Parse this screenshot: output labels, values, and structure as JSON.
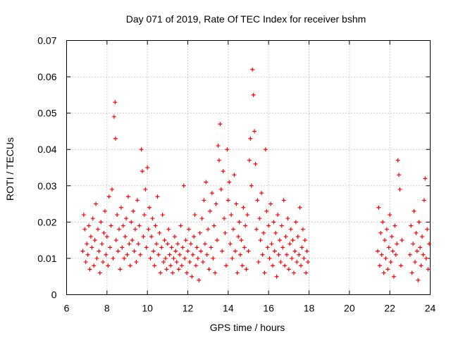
{
  "chart_data": {
    "type": "scatter",
    "title": "Day 071 of 2019, Rate Of TEC Index for receiver bshm",
    "xlabel": "GPS time / hours",
    "ylabel": "ROTI / TECUs",
    "xlim": [
      6,
      24
    ],
    "ylim": [
      0,
      0.07
    ],
    "x_ticks": [
      "6",
      "8",
      "10",
      "12",
      "14",
      "16",
      "18",
      "20",
      "22",
      "24"
    ],
    "y_ticks": [
      "0",
      "0.01",
      "0.02",
      "0.03",
      "0.04",
      "0.05",
      "0.06",
      "0.07"
    ],
    "grid": true,
    "marker": "+",
    "color": "#ff0000",
    "series": [
      {
        "name": "ROTI",
        "points": [
          [
            6.8,
            0.012
          ],
          [
            6.85,
            0.022
          ],
          [
            6.9,
            0.018
          ],
          [
            6.95,
            0.009
          ],
          [
            7.0,
            0.014
          ],
          [
            7.05,
            0.011
          ],
          [
            7.1,
            0.019
          ],
          [
            7.15,
            0.007
          ],
          [
            7.2,
            0.016
          ],
          [
            7.25,
            0.013
          ],
          [
            7.3,
            0.021
          ],
          [
            7.35,
            0.008
          ],
          [
            7.4,
            0.015
          ],
          [
            7.45,
            0.025
          ],
          [
            7.5,
            0.01
          ],
          [
            7.55,
            0.018
          ],
          [
            7.6,
            0.012
          ],
          [
            7.65,
            0.006
          ],
          [
            7.7,
            0.02
          ],
          [
            7.75,
            0.014
          ],
          [
            7.8,
            0.009
          ],
          [
            7.85,
            0.017
          ],
          [
            7.9,
            0.023
          ],
          [
            7.95,
            0.011
          ],
          [
            8.0,
            0.016
          ],
          [
            8.05,
            0.008
          ],
          [
            8.1,
            0.027
          ],
          [
            8.15,
            0.013
          ],
          [
            8.2,
            0.019
          ],
          [
            8.25,
            0.029
          ],
          [
            8.3,
            0.01
          ],
          [
            8.35,
            0.049
          ],
          [
            8.4,
            0.053
          ],
          [
            8.42,
            0.043
          ],
          [
            8.45,
            0.015
          ],
          [
            8.5,
            0.022
          ],
          [
            8.55,
            0.012
          ],
          [
            8.6,
            0.018
          ],
          [
            8.65,
            0.007
          ],
          [
            8.7,
            0.024
          ],
          [
            8.75,
            0.013
          ],
          [
            8.8,
            0.019
          ],
          [
            8.85,
            0.01
          ],
          [
            8.9,
            0.016
          ],
          [
            8.95,
            0.021
          ],
          [
            9.0,
            0.011
          ],
          [
            9.05,
            0.027
          ],
          [
            9.1,
            0.014
          ],
          [
            9.15,
            0.008
          ],
          [
            9.2,
            0.02
          ],
          [
            9.25,
            0.015
          ],
          [
            9.3,
            0.023
          ],
          [
            9.35,
            0.012
          ],
          [
            9.4,
            0.018
          ],
          [
            9.45,
            0.009
          ],
          [
            9.5,
            0.026
          ],
          [
            9.55,
            0.014
          ],
          [
            9.6,
            0.019
          ],
          [
            9.65,
            0.011
          ],
          [
            9.7,
            0.04
          ],
          [
            9.75,
            0.034
          ],
          [
            9.8,
            0.016
          ],
          [
            9.85,
            0.022
          ],
          [
            9.9,
            0.029
          ],
          [
            9.95,
            0.013
          ],
          [
            10.0,
            0.035
          ],
          [
            10.05,
            0.018
          ],
          [
            10.1,
            0.024
          ],
          [
            10.15,
            0.01
          ],
          [
            10.2,
            0.016
          ],
          [
            10.25,
            0.021
          ],
          [
            10.3,
            0.012
          ],
          [
            10.35,
            0.008
          ],
          [
            10.4,
            0.019
          ],
          [
            10.45,
            0.014
          ],
          [
            10.5,
            0.027
          ],
          [
            10.55,
            0.011
          ],
          [
            10.6,
            0.017
          ],
          [
            10.65,
            0.006
          ],
          [
            10.7,
            0.013
          ],
          [
            10.75,
            0.022
          ],
          [
            10.8,
            0.009
          ],
          [
            10.85,
            0.015
          ],
          [
            10.9,
            0.01
          ],
          [
            10.95,
            0.007
          ],
          [
            11.0,
            0.014
          ],
          [
            11.05,
            0.018
          ],
          [
            11.1,
            0.011
          ],
          [
            11.15,
            0.008
          ],
          [
            11.2,
            0.013
          ],
          [
            11.25,
            0.006
          ],
          [
            11.3,
            0.01
          ],
          [
            11.35,
            0.016
          ],
          [
            11.4,
            0.012
          ],
          [
            11.45,
            0.009
          ],
          [
            11.5,
            0.014
          ],
          [
            11.55,
            0.007
          ],
          [
            11.6,
            0.011
          ],
          [
            11.65,
            0.019
          ],
          [
            11.7,
            0.008
          ],
          [
            11.75,
            0.013
          ],
          [
            11.8,
            0.03
          ],
          [
            11.85,
            0.01
          ],
          [
            11.9,
            0.015
          ],
          [
            11.95,
            0.006
          ],
          [
            12.0,
            0.012
          ],
          [
            12.05,
            0.018
          ],
          [
            12.1,
            0.009
          ],
          [
            12.15,
            0.014
          ],
          [
            12.2,
            0.005
          ],
          [
            12.25,
            0.011
          ],
          [
            12.3,
            0.016
          ],
          [
            12.35,
            0.022
          ],
          [
            12.4,
            0.008
          ],
          [
            12.45,
            0.013
          ],
          [
            12.5,
            0.01
          ],
          [
            12.55,
            0.004
          ],
          [
            12.6,
            0.017
          ],
          [
            12.65,
            0.012
          ],
          [
            12.7,
            0.021
          ],
          [
            12.75,
            0.009
          ],
          [
            12.8,
            0.026
          ],
          [
            12.85,
            0.014
          ],
          [
            12.9,
            0.031
          ],
          [
            12.95,
            0.011
          ],
          [
            13.0,
            0.018
          ],
          [
            13.05,
            0.007
          ],
          [
            13.1,
            0.023
          ],
          [
            13.15,
            0.013
          ],
          [
            13.2,
            0.028
          ],
          [
            13.25,
            0.01
          ],
          [
            13.3,
            0.019
          ],
          [
            13.35,
            0.006
          ],
          [
            13.4,
            0.025
          ],
          [
            13.45,
            0.015
          ],
          [
            13.5,
            0.041
          ],
          [
            13.55,
            0.037
          ],
          [
            13.6,
            0.047
          ],
          [
            13.65,
            0.029
          ],
          [
            13.7,
            0.012
          ],
          [
            13.75,
            0.034
          ],
          [
            13.8,
            0.021
          ],
          [
            13.85,
            0.017
          ],
          [
            13.9,
            0.008
          ],
          [
            13.95,
            0.04
          ],
          [
            14.0,
            0.026
          ],
          [
            14.05,
            0.031
          ],
          [
            14.1,
            0.014
          ],
          [
            14.15,
            0.022
          ],
          [
            14.2,
            0.01
          ],
          [
            14.25,
            0.018
          ],
          [
            14.3,
            0.033
          ],
          [
            14.35,
            0.012
          ],
          [
            14.4,
            0.025
          ],
          [
            14.45,
            0.006
          ],
          [
            14.5,
            0.016
          ],
          [
            14.55,
            0.02
          ],
          [
            14.6,
            0.011
          ],
          [
            14.65,
            0.015
          ],
          [
            14.7,
            0.008
          ],
          [
            14.75,
            0.024
          ],
          [
            14.8,
            0.013
          ],
          [
            14.85,
            0.019
          ],
          [
            14.9,
            0.007
          ],
          [
            14.95,
            0.022
          ],
          [
            15.0,
            0.012
          ],
          [
            15.05,
            0.037
          ],
          [
            15.1,
            0.043
          ],
          [
            15.15,
            0.03
          ],
          [
            15.2,
            0.062
          ],
          [
            15.25,
            0.055
          ],
          [
            15.3,
            0.045
          ],
          [
            15.35,
            0.036
          ],
          [
            15.4,
            0.018
          ],
          [
            15.45,
            0.026
          ],
          [
            15.5,
            0.009
          ],
          [
            15.55,
            0.021
          ],
          [
            15.6,
            0.015
          ],
          [
            15.65,
            0.028
          ],
          [
            15.7,
            0.011
          ],
          [
            15.75,
            0.017
          ],
          [
            15.8,
            0.006
          ],
          [
            15.85,
            0.04
          ],
          [
            15.9,
            0.023
          ],
          [
            15.95,
            0.013
          ],
          [
            16.0,
            0.019
          ],
          [
            16.05,
            0.01
          ],
          [
            16.1,
            0.025
          ],
          [
            16.15,
            0.014
          ],
          [
            16.2,
            0.008
          ],
          [
            16.25,
            0.02
          ],
          [
            16.3,
            0.012
          ],
          [
            16.35,
            0.017
          ],
          [
            16.4,
            0.005
          ],
          [
            16.45,
            0.022
          ],
          [
            16.5,
            0.011
          ],
          [
            16.55,
            0.015
          ],
          [
            16.6,
            0.009
          ],
          [
            16.65,
            0.019
          ],
          [
            16.7,
            0.013
          ],
          [
            16.75,
            0.026
          ],
          [
            16.8,
            0.008
          ],
          [
            16.85,
            0.016
          ],
          [
            16.9,
            0.011
          ],
          [
            16.95,
            0.021
          ],
          [
            17.0,
            0.007
          ],
          [
            17.05,
            0.014
          ],
          [
            17.1,
            0.018
          ],
          [
            17.15,
            0.01
          ],
          [
            17.2,
            0.015
          ],
          [
            17.25,
            0.006
          ],
          [
            17.3,
            0.012
          ],
          [
            17.35,
            0.02
          ],
          [
            17.4,
            0.009
          ],
          [
            17.45,
            0.016
          ],
          [
            17.5,
            0.011
          ],
          [
            17.55,
            0.024
          ],
          [
            17.6,
            0.008
          ],
          [
            17.65,
            0.013
          ],
          [
            17.7,
            0.018
          ],
          [
            17.75,
            0.01
          ],
          [
            17.8,
            0.015
          ],
          [
            17.85,
            0.006
          ],
          [
            17.9,
            0.012
          ],
          [
            17.95,
            0.009
          ],
          [
            21.4,
            0.012
          ],
          [
            21.45,
            0.024
          ],
          [
            21.5,
            0.008
          ],
          [
            21.55,
            0.017
          ],
          [
            21.6,
            0.011
          ],
          [
            21.65,
            0.02
          ],
          [
            21.7,
            0.006
          ],
          [
            21.75,
            0.015
          ],
          [
            21.8,
            0.01
          ],
          [
            21.85,
            0.018
          ],
          [
            21.9,
            0.007
          ],
          [
            21.95,
            0.013
          ],
          [
            22.0,
            0.022
          ],
          [
            22.05,
            0.009
          ],
          [
            22.1,
            0.016
          ],
          [
            22.15,
            0.012
          ],
          [
            22.2,
            0.005
          ],
          [
            22.25,
            0.019
          ],
          [
            22.3,
            0.011
          ],
          [
            22.35,
            0.014
          ],
          [
            22.4,
            0.037
          ],
          [
            22.45,
            0.033
          ],
          [
            22.5,
            0.029
          ],
          [
            22.55,
            0.008
          ],
          [
            22.6,
            0.015
          ],
          [
            23.0,
            0.011
          ],
          [
            23.05,
            0.019
          ],
          [
            23.1,
            0.006
          ],
          [
            23.15,
            0.014
          ],
          [
            23.2,
            0.023
          ],
          [
            23.25,
            0.009
          ],
          [
            23.3,
            0.017
          ],
          [
            23.35,
            0.012
          ],
          [
            23.4,
            0.004
          ],
          [
            23.45,
            0.02
          ],
          [
            23.5,
            0.013
          ],
          [
            23.55,
            0.008
          ],
          [
            23.6,
            0.016
          ],
          [
            23.65,
            0.011
          ],
          [
            23.7,
            0.026
          ],
          [
            23.75,
            0.032
          ],
          [
            23.8,
            0.01
          ],
          [
            23.85,
            0.018
          ],
          [
            23.9,
            0.007
          ],
          [
            23.95,
            0.014
          ]
        ]
      }
    ]
  }
}
